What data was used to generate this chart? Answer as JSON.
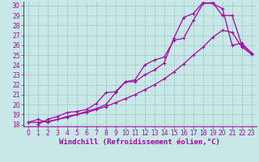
{
  "xlabel": "Windchill (Refroidissement éolien,°C)",
  "bg_color": "#c8e8e8",
  "line_color": "#aa00aa",
  "grid_color": "#a0c8c8",
  "xlim": [
    -0.5,
    23.5
  ],
  "ylim": [
    17.8,
    30.4
  ],
  "xticks": [
    0,
    1,
    2,
    3,
    4,
    5,
    6,
    7,
    8,
    9,
    10,
    11,
    12,
    13,
    14,
    15,
    16,
    17,
    18,
    19,
    20,
    21,
    22,
    23
  ],
  "yticks": [
    18,
    19,
    20,
    21,
    22,
    23,
    24,
    25,
    26,
    27,
    28,
    29,
    30
  ],
  "line1_x": [
    0,
    1,
    2,
    3,
    4,
    5,
    6,
    7,
    8,
    9,
    10,
    11,
    12,
    13,
    14,
    15,
    16,
    17,
    18,
    19,
    20,
    21,
    22,
    23
  ],
  "line1_y": [
    18.2,
    18.5,
    18.2,
    18.5,
    18.7,
    19.0,
    19.2,
    19.5,
    19.8,
    20.2,
    20.6,
    21.0,
    21.5,
    22.0,
    22.6,
    23.3,
    24.1,
    25.0,
    25.8,
    26.8,
    27.5,
    27.3,
    25.8,
    25.1
  ],
  "line2_x": [
    1,
    2,
    3,
    4,
    5,
    6,
    7,
    8,
    9,
    10,
    11,
    12,
    13,
    14,
    15,
    16,
    17,
    18,
    19,
    20,
    21,
    22,
    23
  ],
  "line2_y": [
    18.0,
    18.5,
    18.8,
    19.2,
    19.3,
    19.5,
    20.1,
    21.2,
    21.3,
    22.3,
    22.3,
    23.0,
    23.5,
    24.2,
    26.7,
    28.8,
    29.2,
    30.3,
    30.2,
    29.7,
    26.0,
    26.2,
    25.2
  ],
  "line3_x": [
    0,
    1,
    2,
    3,
    4,
    5,
    6,
    7,
    8,
    9,
    10,
    11,
    12,
    13,
    14,
    15,
    16,
    17,
    18,
    19,
    20,
    21,
    22,
    23
  ],
  "line3_y": [
    18.2,
    18.2,
    18.3,
    18.5,
    18.8,
    19.0,
    19.3,
    19.6,
    20.0,
    21.2,
    22.3,
    22.5,
    24.0,
    24.5,
    24.8,
    26.5,
    26.7,
    28.5,
    30.2,
    30.3,
    29.0,
    29.0,
    26.0,
    25.2
  ],
  "markersize": 3.5,
  "linewidth": 0.9,
  "tick_fontsize": 5.5,
  "xlabel_fontsize": 6.5
}
